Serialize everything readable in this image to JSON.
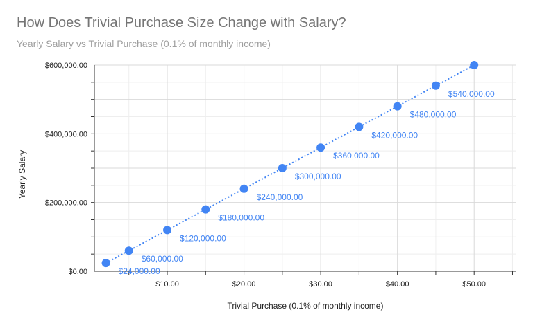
{
  "title": "How Does Trivial Purchase Size Change with Salary?",
  "subtitle": "Yearly Salary vs Trivial Purchase (0.1% of monthly income)",
  "colors": {
    "series": "#4285f4",
    "label": "#4285f4",
    "grid_major": "#d9d9d9",
    "grid_minor": "#eeeeee",
    "axis": "#333333"
  },
  "chart_data": {
    "type": "scatter",
    "title": "How Does Trivial Purchase Size Change with Salary?",
    "subtitle": "Yearly Salary vs Trivial Purchase (0.1% of monthly income)",
    "xlabel": "Trivial Purchase (0.1% of monthly income)",
    "ylabel": "Yearly Salary",
    "xlim": [
      0.5,
      55.5
    ],
    "ylim": [
      0,
      600000
    ],
    "x_ticks": [
      10,
      20,
      30,
      40,
      50
    ],
    "x_tick_labels": [
      "$10.00",
      "$20.00",
      "$30.00",
      "$40.00",
      "$50.00"
    ],
    "y_ticks": [
      0,
      200000,
      400000,
      600000
    ],
    "y_tick_labels": [
      "$0.00",
      "$200,000.00",
      "$400,000.00",
      "$600,000.00"
    ],
    "grid": true,
    "trendline": "linear, dotted",
    "series": [
      {
        "x": [
          2,
          5,
          10,
          15,
          20,
          25,
          30,
          35,
          40,
          45,
          50
        ],
        "y": [
          24000,
          60000,
          120000,
          180000,
          240000,
          300000,
          360000,
          420000,
          480000,
          540000,
          600000
        ],
        "labels": [
          "$24,000.00",
          "$60,000.00",
          "$120,000.00",
          "$180,000.00",
          "$240,000.00",
          "$300,000.00",
          "$360,000.00",
          "$420,000.00",
          "$480,000.00",
          "$540,000.00",
          ""
        ]
      }
    ]
  }
}
